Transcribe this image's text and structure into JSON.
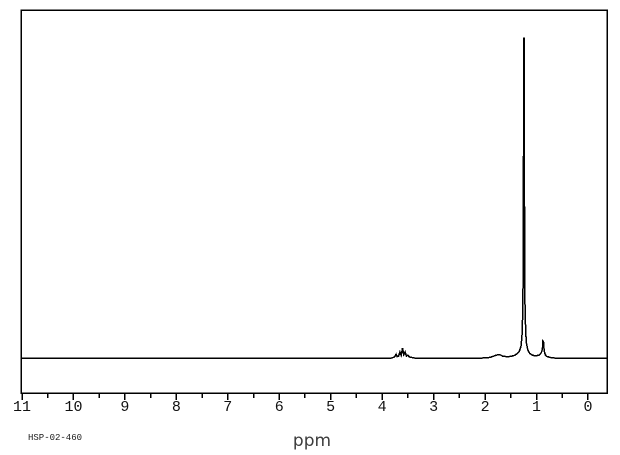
{
  "page": {
    "background": "#ffffff",
    "line_color": "#000000"
  },
  "chart_data": {
    "type": "line",
    "kind": "NMR spectrum trace",
    "xlabel": "ppm",
    "annotation": "HSP-02-460",
    "axis_reversed": true,
    "grid": false,
    "xlim": [
      11.02,
      -0.37
    ],
    "ylim": [
      0,
      1.0
    ],
    "x_major_ticks": [
      11,
      10,
      9,
      8,
      7,
      6,
      5,
      4,
      3,
      2,
      1,
      0
    ],
    "x_tick_labels": [
      "11",
      "10",
      "9",
      "8",
      "7",
      "6",
      "5",
      "4",
      "3",
      "2",
      "1",
      "0"
    ],
    "x_minor_ticks": [
      10.5,
      9.5,
      8.5,
      7.5,
      6.5,
      5.5,
      4.5,
      3.5,
      2.5,
      1.5,
      0.5
    ],
    "line_color": "#000000",
    "peaks": [
      {
        "ppm": 3.6,
        "rel_intensity": 0.03,
        "shape": "weak multiplet"
      },
      {
        "ppm": 1.7,
        "rel_intensity": 0.01,
        "shape": "very weak broad bump"
      },
      {
        "ppm": 1.25,
        "rel_intensity": 1.0,
        "shape": "tall sharp singlet"
      },
      {
        "ppm": 0.87,
        "rel_intensity": 0.05,
        "shape": "small peak"
      }
    ],
    "series": [
      {
        "name": "intensity",
        "points": [
          [
            11.02,
            0
          ],
          [
            3.82,
            0
          ],
          [
            3.76,
            0.003
          ],
          [
            3.73,
            0.012
          ],
          [
            3.71,
            0.004
          ],
          [
            3.68,
            0.006
          ],
          [
            3.655,
            0.019
          ],
          [
            3.63,
            0.008
          ],
          [
            3.605,
            0.031
          ],
          [
            3.58,
            0.01
          ],
          [
            3.555,
            0.019
          ],
          [
            3.53,
            0.006
          ],
          [
            3.5,
            0.009
          ],
          [
            3.47,
            0.003
          ],
          [
            3.43,
            0.002
          ],
          [
            3.37,
            0
          ],
          [
            2.05,
            0
          ],
          [
            1.9,
            0.002
          ],
          [
            1.78,
            0.009
          ],
          [
            1.72,
            0.011
          ],
          [
            1.66,
            0.006
          ],
          [
            1.58,
            0.004
          ],
          [
            1.5,
            0.005
          ],
          [
            1.43,
            0.008
          ],
          [
            1.38,
            0.013
          ],
          [
            1.33,
            0.022
          ],
          [
            1.3,
            0.038
          ],
          [
            1.28,
            0.075
          ],
          [
            1.265,
            0.16
          ],
          [
            1.255,
            0.42
          ],
          [
            1.25,
            1.0
          ],
          [
            1.24,
            1.0
          ],
          [
            1.235,
            0.55
          ],
          [
            1.225,
            0.18
          ],
          [
            1.21,
            0.08
          ],
          [
            1.195,
            0.045
          ],
          [
            1.17,
            0.025
          ],
          [
            1.13,
            0.014
          ],
          [
            1.07,
            0.008
          ],
          [
            1.01,
            0.007
          ],
          [
            0.95,
            0.009
          ],
          [
            0.92,
            0.013
          ],
          [
            0.9,
            0.02
          ],
          [
            0.885,
            0.028
          ],
          [
            0.875,
            0.053
          ],
          [
            0.865,
            0.05
          ],
          [
            0.85,
            0.022
          ],
          [
            0.83,
            0.01
          ],
          [
            0.8,
            0.005
          ],
          [
            0.74,
            0.002
          ],
          [
            0.65,
            0
          ],
          [
            -0.37,
            0
          ]
        ]
      }
    ]
  }
}
